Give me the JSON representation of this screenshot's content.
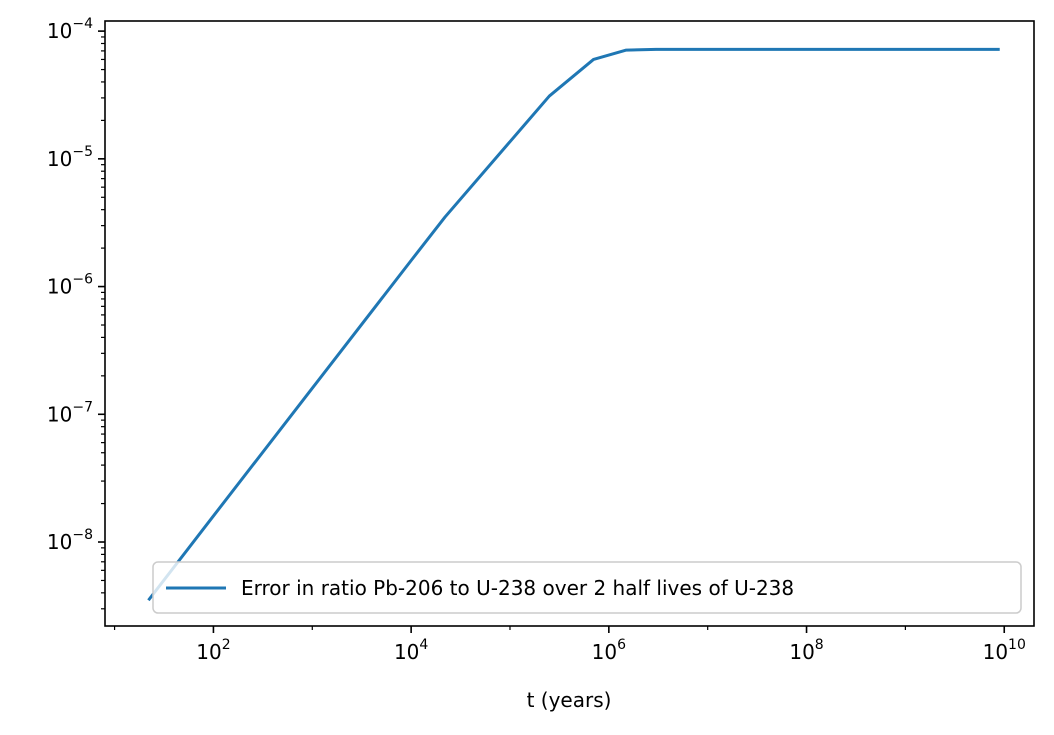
{
  "chart_data": {
    "type": "line",
    "title": "",
    "xlabel": "t (years)",
    "ylabel": "",
    "xscale": "log",
    "yscale": "log",
    "xlim": [
      8,
      20000000000
    ],
    "ylim": [
      2.2e-09,
      0.00012
    ],
    "x_ticks": [
      {
        "base": "10",
        "exp": "2",
        "value": 100
      },
      {
        "base": "10",
        "exp": "4",
        "value": 10000
      },
      {
        "base": "10",
        "exp": "6",
        "value": 1000000
      },
      {
        "base": "10",
        "exp": "8",
        "value": 100000000
      },
      {
        "base": "10",
        "exp": "10",
        "value": 10000000000
      }
    ],
    "y_ticks": [
      {
        "base": "10",
        "exp": "−8",
        "value": 1e-08
      },
      {
        "base": "10",
        "exp": "−7",
        "value": 1e-07
      },
      {
        "base": "10",
        "exp": "−6",
        "value": 1e-06
      },
      {
        "base": "10",
        "exp": "−5",
        "value": 1e-05
      },
      {
        "base": "10",
        "exp": "−4",
        "value": 0.0001
      }
    ],
    "grid": false,
    "legend_position": "lower-right",
    "series": [
      {
        "name": "Error in ratio Pb-206 to U-238 over 2 half lives of U-238",
        "color": "#1f77b4",
        "x": [
          22,
          100,
          1000,
          10000,
          22000,
          250000,
          700000,
          1500000,
          3000000,
          10000000,
          100000000,
          1000000000,
          9000000000
        ],
        "y": [
          3.5e-09,
          1.6e-08,
          1.6e-07,
          1.6e-06,
          3.5e-06,
          3.1e-05,
          6e-05,
          7.1e-05,
          7.2e-05,
          7.2e-05,
          7.2e-05,
          7.2e-05,
          7.2e-05
        ]
      }
    ]
  }
}
